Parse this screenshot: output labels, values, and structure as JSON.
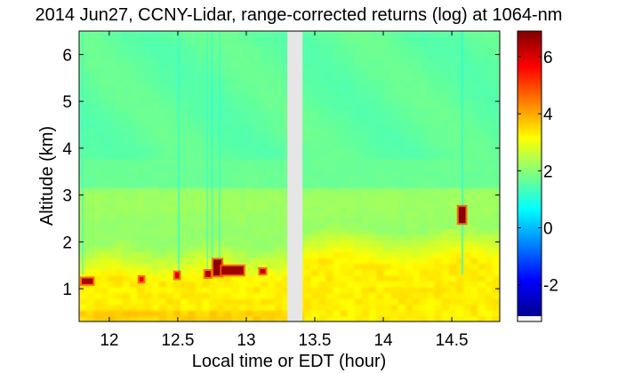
{
  "chart_data": {
    "type": "heatmap",
    "title": "2014 Jun27, CCNY-Lidar, range-corrected returns (log) at 1064-nm",
    "xlabel": "Local time or EDT (hour)",
    "ylabel": "Altitude (km)",
    "xlim": [
      11.78,
      14.85
    ],
    "ylim": [
      0.3,
      6.5
    ],
    "xticks": [
      12,
      12.5,
      13,
      13.5,
      14,
      14.5
    ],
    "xtick_labels": [
      "12",
      "12.5",
      "13",
      "13.5",
      "14",
      "14.5"
    ],
    "yticks": [
      1,
      2,
      3,
      4,
      5,
      6
    ],
    "ytick_labels": [
      "1",
      "2",
      "3",
      "4",
      "5",
      "6"
    ],
    "colorbar": {
      "colormap": "jet",
      "clim": [
        -3.1,
        6.9
      ],
      "ticks": [
        -2,
        0,
        2,
        4,
        6
      ],
      "tick_labels": [
        "-2",
        "0",
        "2",
        "4",
        "6"
      ]
    },
    "data_gap": {
      "x_start": 13.3,
      "x_end": 13.41,
      "color": "#e6e6e6"
    },
    "field_description": {
      "background_value": 1.8,
      "upper_atmosphere_value": 1.6,
      "boundary_layer_value": 3.3,
      "boundary_layer_top_km": 1.2,
      "cloud_value": 6.8
    },
    "clouds": [
      {
        "x_start": 11.8,
        "x_end": 11.88,
        "y_start": 1.1,
        "y_end": 1.22,
        "value": 6.5
      },
      {
        "x_start": 12.22,
        "x_end": 12.25,
        "y_start": 1.15,
        "y_end": 1.25,
        "value": 5.8
      },
      {
        "x_start": 12.48,
        "x_end": 12.51,
        "y_start": 1.22,
        "y_end": 1.35,
        "value": 6.0
      },
      {
        "x_start": 12.7,
        "x_end": 12.74,
        "y_start": 1.25,
        "y_end": 1.38,
        "value": 6.5
      },
      {
        "x_start": 12.76,
        "x_end": 12.82,
        "y_start": 1.28,
        "y_end": 1.62,
        "value": 6.8
      },
      {
        "x_start": 12.82,
        "x_end": 12.98,
        "y_start": 1.3,
        "y_end": 1.48,
        "value": 6.6
      },
      {
        "x_start": 13.1,
        "x_end": 13.14,
        "y_start": 1.32,
        "y_end": 1.42,
        "value": 6.2
      },
      {
        "x_start": 14.55,
        "x_end": 14.6,
        "y_start": 2.4,
        "y_end": 2.75,
        "value": 6.8
      }
    ]
  }
}
